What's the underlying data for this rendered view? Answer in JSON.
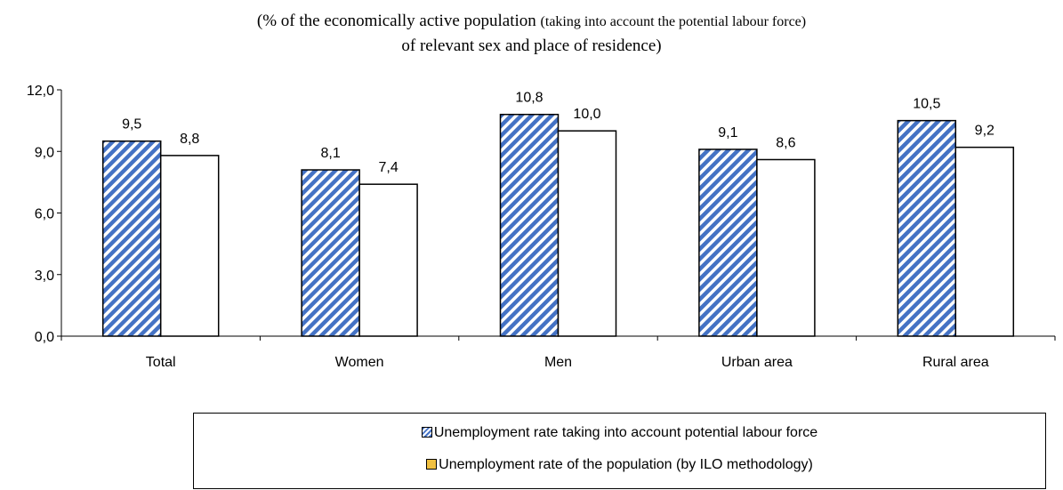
{
  "chart_data": {
    "type": "bar",
    "title": "(% of the economically active population",
    "title_small": "(taking into account the potential labour force)",
    "title_line2": "of relevant sex and place of residence)",
    "categories": [
      "Total",
      "Women",
      "Men",
      "Urban area",
      "Rural area"
    ],
    "series": [
      {
        "name": "Unemployment rate taking into account potential labour force",
        "values": [
          9.5,
          8.1,
          10.8,
          9.1,
          10.5
        ],
        "labels": [
          "9,5",
          "8,1",
          "10,8",
          "9,1",
          "10,5"
        ],
        "fill": "diagonal-hatch",
        "color": "#4472c4"
      },
      {
        "name": "Unemployment rate of the population (by ILO methodology)",
        "values": [
          8.8,
          7.4,
          10.0,
          8.6,
          9.2
        ],
        "labels": [
          "8,8",
          "7,4",
          "10,0",
          "8,6",
          "9,2"
        ],
        "fill": "solid",
        "color": "#ffffff",
        "legend_swatch_color": "#f0c040"
      }
    ],
    "yticks": [
      "0,0",
      "3,0",
      "6,0",
      "9,0",
      "12,0"
    ],
    "ylim": [
      0,
      12
    ],
    "grid": false,
    "legend_position": "bottom"
  }
}
